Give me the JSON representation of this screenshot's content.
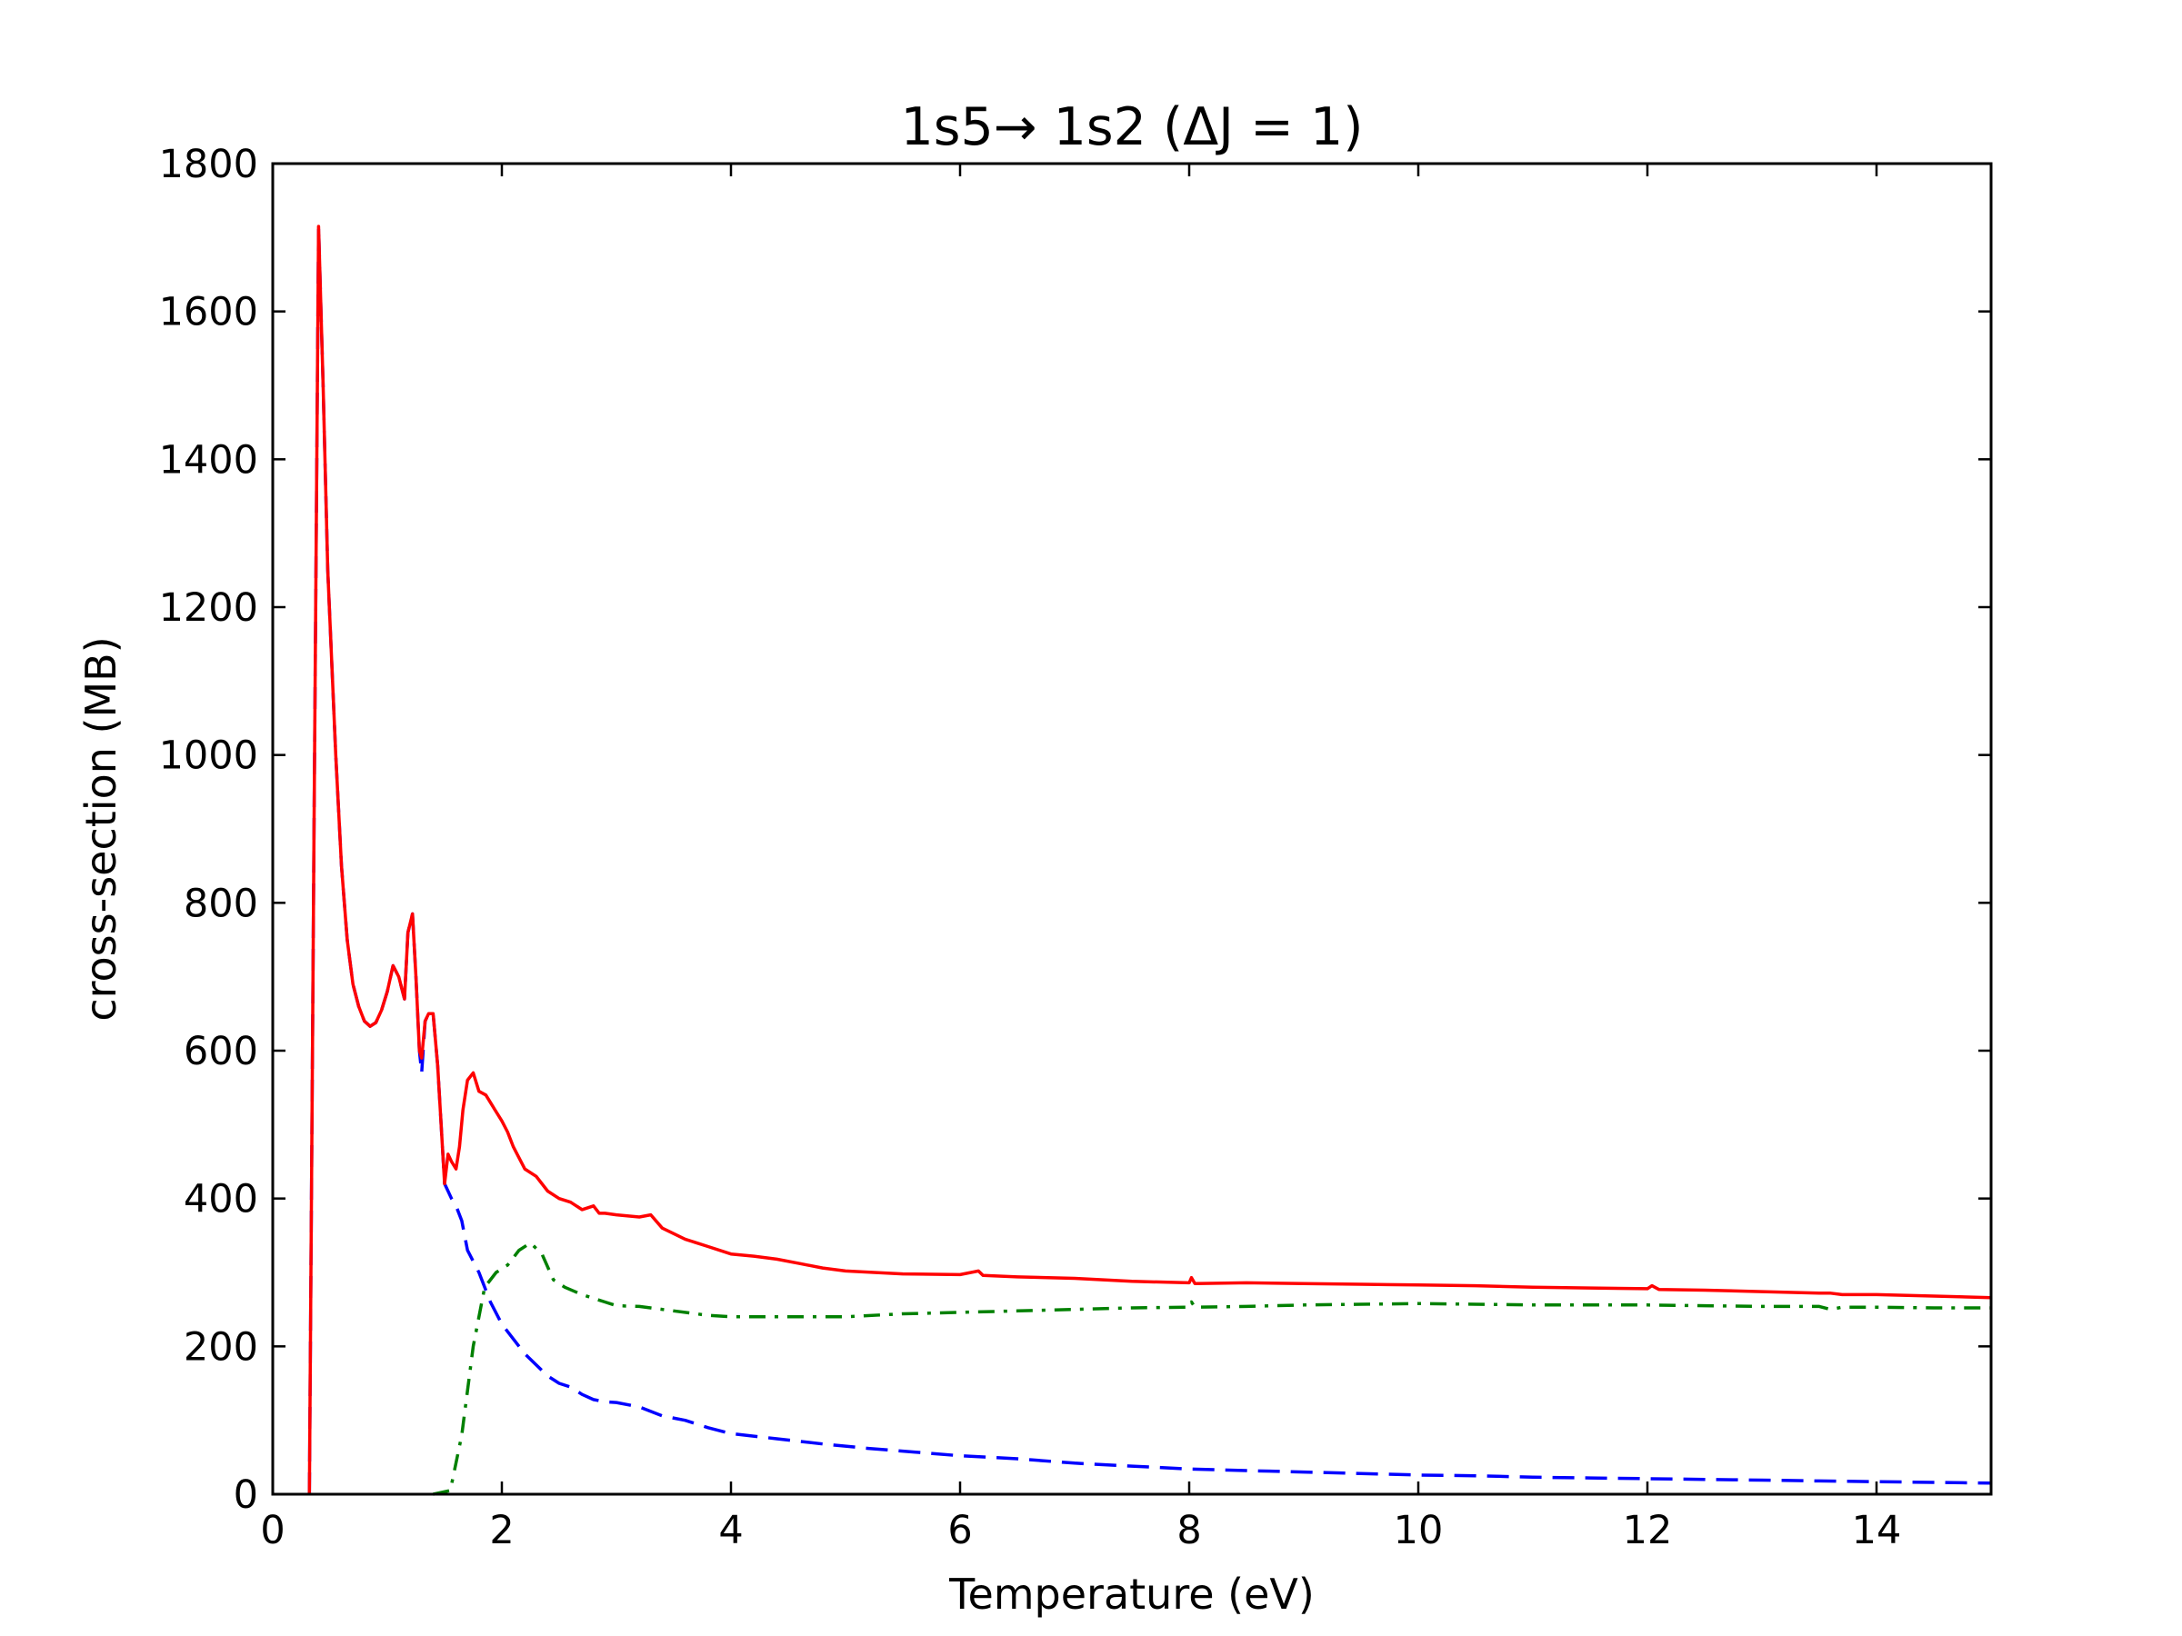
{
  "chart_data": {
    "type": "line",
    "title": "1s5→ 1s2  (ΔJ = 1)",
    "xlabel": "Temperature (eV)",
    "ylabel": "cross-section (MB)",
    "xlim": [
      0,
      15
    ],
    "ylim": [
      0,
      1800
    ],
    "xticks": [
      0,
      2,
      4,
      6,
      8,
      10,
      12,
      14
    ],
    "yticks": [
      0,
      200,
      400,
      600,
      800,
      1000,
      1200,
      1400,
      1600,
      1800
    ],
    "grid": false,
    "legend": "none",
    "series": [
      {
        "color": "#ff0000",
        "style": "solid",
        "x": [
          0.32,
          0.36,
          0.4,
          0.44,
          0.48,
          0.55,
          0.6,
          0.65,
          0.7,
          0.75,
          0.8,
          0.85,
          0.9,
          0.95,
          1.0,
          1.05,
          1.1,
          1.15,
          1.18,
          1.22,
          1.25,
          1.28,
          1.3,
          1.33,
          1.36,
          1.4,
          1.44,
          1.47,
          1.5,
          1.53,
          1.56,
          1.6,
          1.63,
          1.66,
          1.7,
          1.75,
          1.8,
          1.86,
          1.9,
          1.94,
          2.0,
          2.05,
          2.1,
          2.2,
          2.3,
          2.4,
          2.5,
          2.6,
          2.7,
          2.8,
          2.85,
          2.9,
          3.0,
          3.2,
          3.3,
          3.4,
          3.6,
          3.8,
          4.0,
          4.2,
          4.4,
          4.6,
          4.8,
          5.0,
          5.5,
          6.0,
          6.16,
          6.2,
          6.5,
          7.0,
          7.5,
          8.0,
          8.02,
          8.05,
          8.5,
          9.0,
          9.5,
          10.0,
          10.5,
          11.0,
          11.5,
          12.0,
          12.04,
          12.1,
          12.5,
          13.0,
          13.5,
          13.6,
          13.7,
          14.0,
          14.5,
          15.0
        ],
        "y": [
          0,
          900,
          1715,
          1500,
          1250,
          1000,
          850,
          750,
          690,
          660,
          640,
          633,
          638,
          655,
          680,
          715,
          700,
          670,
          760,
          785,
          700,
          600,
          590,
          640,
          650,
          650,
          580,
          500,
          420,
          460,
          450,
          440,
          470,
          520,
          560,
          570,
          545,
          540,
          530,
          520,
          505,
          490,
          470,
          440,
          430,
          410,
          400,
          395,
          385,
          390,
          380,
          380,
          378,
          375,
          378,
          360,
          345,
          335,
          325,
          322,
          318,
          312,
          306,
          302,
          298,
          297,
          302,
          296,
          294,
          292,
          288,
          286,
          293,
          285,
          286,
          285,
          284,
          283,
          282,
          280,
          279,
          278,
          282,
          277,
          276,
          274,
          272,
          272,
          270,
          270,
          268,
          266
        ]
      },
      {
        "color": "#0000ff",
        "style": "dashed",
        "x": [
          0.32,
          0.36,
          0.4,
          0.44,
          0.48,
          0.55,
          0.6,
          0.65,
          0.7,
          0.75,
          0.8,
          0.85,
          0.9,
          0.95,
          1.0,
          1.05,
          1.1,
          1.15,
          1.18,
          1.22,
          1.25,
          1.28,
          1.3,
          1.33,
          1.36,
          1.4,
          1.44,
          1.47,
          1.5,
          1.53,
          1.56,
          1.6,
          1.65,
          1.7,
          1.8,
          1.9,
          2.0,
          2.1,
          2.2,
          2.3,
          2.4,
          2.5,
          2.6,
          2.7,
          2.8,
          2.9,
          3.0,
          3.2,
          3.4,
          3.6,
          3.8,
          4.0,
          4.4,
          4.8,
          5.2,
          5.6,
          6.0,
          6.5,
          7.0,
          7.5,
          8.0,
          8.5,
          9.0,
          9.5,
          10.0,
          10.5,
          11.0,
          11.5,
          12.0,
          12.5,
          13.0,
          13.5,
          14.0,
          14.5,
          15.0
        ],
        "y": [
          0,
          900,
          1715,
          1500,
          1250,
          1000,
          850,
          750,
          690,
          660,
          640,
          633,
          638,
          655,
          680,
          715,
          700,
          670,
          760,
          785,
          700,
          600,
          570,
          640,
          650,
          650,
          580,
          500,
          420,
          410,
          400,
          390,
          370,
          330,
          300,
          260,
          230,
          210,
          190,
          175,
          160,
          150,
          145,
          135,
          128,
          125,
          124,
          118,
          106,
          100,
          90,
          82,
          75,
          68,
          62,
          57,
          52,
          48,
          42,
          38,
          34,
          32,
          30,
          28,
          26,
          25,
          23,
          22,
          21,
          20,
          19,
          18,
          17,
          16,
          15
        ]
      },
      {
        "color": "#008000",
        "style": "dashdot",
        "x": [
          1.4,
          1.55,
          1.65,
          1.75,
          1.85,
          1.95,
          2.05,
          2.15,
          2.25,
          2.35,
          2.45,
          2.55,
          2.7,
          2.9,
          3.0,
          3.2,
          3.5,
          3.8,
          4.0,
          4.3,
          4.6,
          5.0,
          5.5,
          6.0,
          6.5,
          7.0,
          7.5,
          8.0,
          8.02,
          8.05,
          8.5,
          9.0,
          9.5,
          10.0,
          10.5,
          11.0,
          11.5,
          12.0,
          12.5,
          13.0,
          13.5,
          13.6,
          13.7,
          14.0,
          14.5,
          15.0
        ],
        "y": [
          0,
          5,
          80,
          200,
          280,
          300,
          310,
          330,
          340,
          325,
          290,
          280,
          270,
          260,
          255,
          254,
          248,
          242,
          240,
          240,
          240,
          240,
          244,
          246,
          248,
          250,
          252,
          253,
          260,
          253,
          254,
          256,
          257,
          258,
          257,
          256,
          256,
          256,
          255,
          254,
          254,
          250,
          253,
          253,
          252,
          252
        ]
      }
    ]
  }
}
